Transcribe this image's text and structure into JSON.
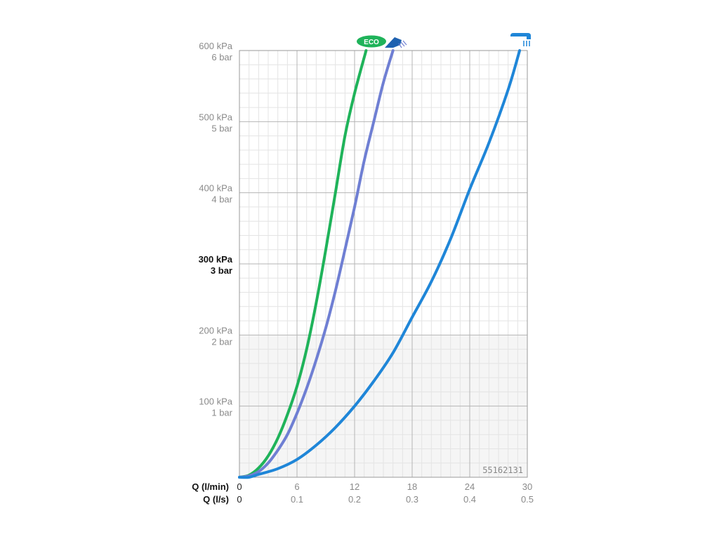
{
  "chart_data": {
    "type": "line",
    "xlabel": "Q (l/min)",
    "xlabel_secondary": "Q (l/s)",
    "xlim": [
      0,
      30
    ],
    "ylim": [
      0,
      600
    ],
    "x_ticks": [
      "0",
      "6",
      "12",
      "18",
      "24",
      "30"
    ],
    "x_ticks_secondary": [
      "0",
      "0.1",
      "0.2",
      "0.3",
      "0.4",
      "0.5"
    ],
    "y_ticks": [
      {
        "value": 100,
        "kpa": "100 kPa",
        "bar": "1 bar",
        "bold": false
      },
      {
        "value": 200,
        "kpa": "200 kPa",
        "bar": "2 bar",
        "bold": false
      },
      {
        "value": 300,
        "kpa": "300 kPa",
        "bar": "3 bar",
        "bold": true
      },
      {
        "value": 400,
        "kpa": "400 kPa",
        "bar": "4 bar",
        "bold": false
      },
      {
        "value": 500,
        "kpa": "500 kPa",
        "bar": "5 bar",
        "bold": false
      },
      {
        "value": 600,
        "kpa": "600 kPa",
        "bar": "6 bar",
        "bold": false
      }
    ],
    "grid": true,
    "product_code": "55162131",
    "series": [
      {
        "color": "#1fb35a",
        "icon": "eco-shower-head-icon",
        "x": [
          0,
          1,
          2,
          3,
          4,
          5,
          6,
          7,
          8,
          9,
          10,
          11,
          12,
          13.2
        ],
        "y": [
          0,
          3,
          13,
          30,
          55,
          88,
          128,
          180,
          245,
          320,
          400,
          480,
          540,
          600
        ]
      },
      {
        "color": "#6f7fd3",
        "icon": "shower-head-icon",
        "x": [
          0,
          1,
          2,
          3,
          4,
          5,
          6,
          7,
          8,
          9,
          10,
          11,
          12,
          13,
          14,
          15,
          16
        ],
        "y": [
          0,
          2,
          8,
          20,
          38,
          60,
          90,
          125,
          165,
          210,
          262,
          320,
          380,
          445,
          500,
          555,
          600
        ]
      },
      {
        "color": "#1f86d8",
        "icon": "overhead-shower-icon",
        "x": [
          0,
          1,
          2,
          4,
          6,
          8,
          10,
          12,
          14,
          16,
          18,
          20,
          22,
          24,
          26,
          28,
          29.2
        ],
        "y": [
          0,
          0,
          4,
          12,
          25,
          45,
          70,
          100,
          135,
          175,
          225,
          275,
          335,
          405,
          470,
          545,
          600
        ]
      }
    ],
    "eco_label": "ECO"
  }
}
